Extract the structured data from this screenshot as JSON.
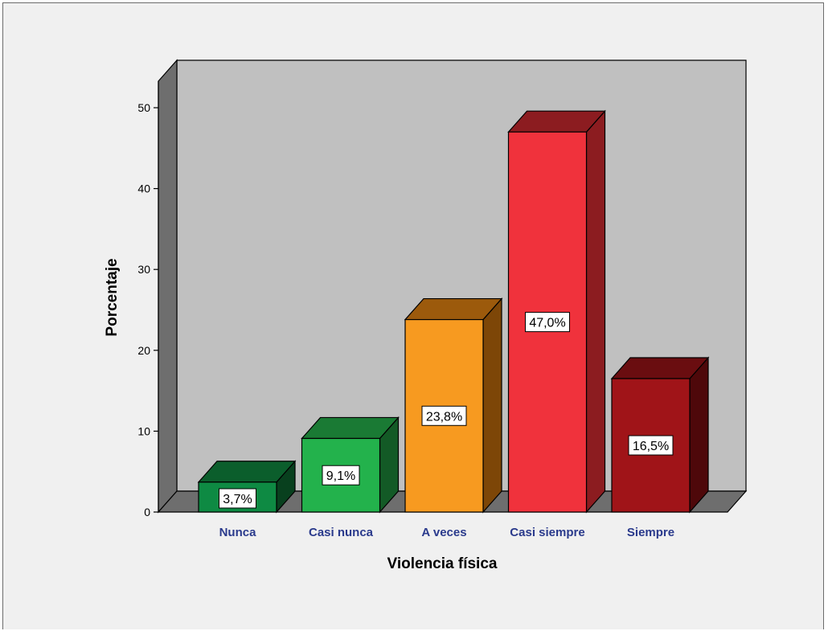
{
  "chart_data": {
    "type": "bar",
    "style": "3d",
    "xlabel": "Violencia física",
    "ylabel": "Porcentaje",
    "ylim": [
      0,
      50
    ],
    "yticks": [
      "0",
      "10",
      "20",
      "30",
      "40",
      "50"
    ],
    "categories": [
      "Nunca",
      "Casi nunca",
      "A veces",
      "Casi siempre",
      "Siempre"
    ],
    "values": [
      3.7,
      9.1,
      23.8,
      47.0,
      16.5
    ],
    "data_labels": [
      "3,7%",
      "9,1%",
      "23,8%",
      "47,0%",
      "16,5%"
    ],
    "colors": [
      {
        "front": "#0e8a43",
        "top": "#0b5e2c",
        "side": "#08401e"
      },
      {
        "front": "#23b24c",
        "top": "#1a7a34",
        "side": "#135a26"
      },
      {
        "front": "#f79a20",
        "top": "#9c5a0c",
        "side": "#7d4607"
      },
      {
        "front": "#f0323c",
        "top": "#8c1c20",
        "side": "#8c1c20"
      },
      {
        "front": "#a01418",
        "top": "#6a0d10",
        "side": "#4e080a"
      }
    ],
    "wall_color": "#c0c0c0",
    "floor_color": "#6e6e6e",
    "grid": false
  }
}
